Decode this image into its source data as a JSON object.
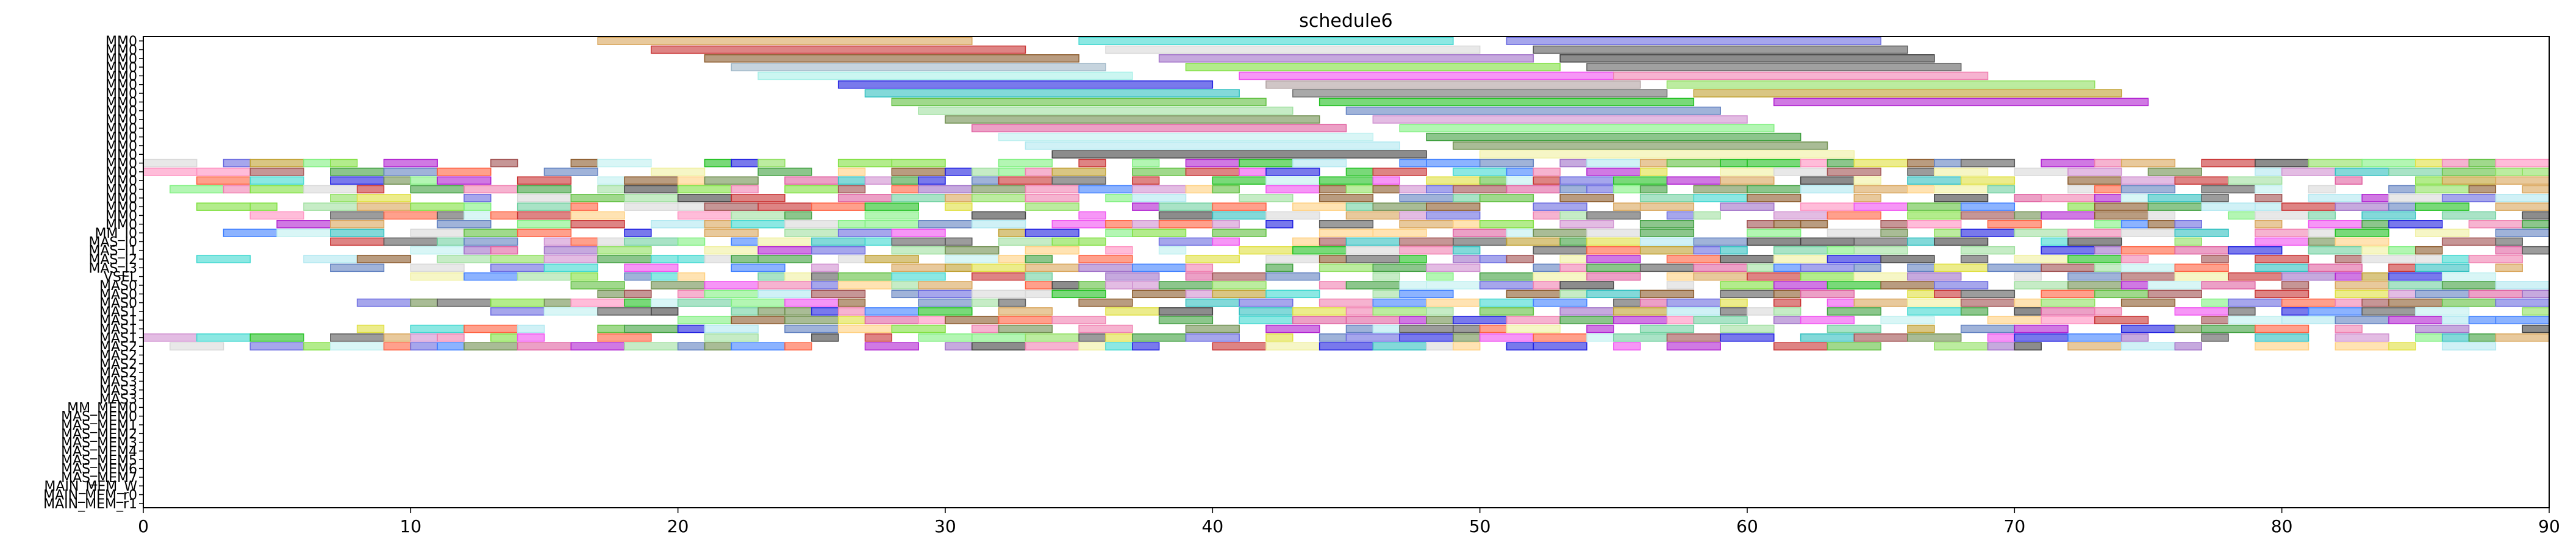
{
  "chart_data": {
    "type": "gantt",
    "title": "schedule6",
    "xlabel": "",
    "ylabel": "",
    "xlim": [
      0,
      90
    ],
    "xticks": [
      0,
      10,
      20,
      30,
      40,
      50,
      60,
      70,
      80,
      90
    ],
    "grid": false,
    "legend": "none",
    "rows": [
      "MM0",
      "MM0",
      "MM0",
      "MM0",
      "MM0",
      "MM0",
      "MM0",
      "MM0",
      "MM0",
      "MM0",
      "MM0",
      "MM0",
      "MM0",
      "MM0",
      "MM0",
      "MM0",
      "MM0",
      "MM0",
      "MM0",
      "MM0",
      "MM0",
      "MM0",
      "MM_I0",
      "MAS_I0",
      "MAS_I1",
      "MAS_I2",
      "MAS_I3",
      "VSEL",
      "MAS0",
      "MAS0",
      "MAS0",
      "MAS1",
      "MAS1",
      "MAS1",
      "MAS1",
      "MAS2",
      "MAS2",
      "MAS2",
      "MAS2",
      "MAS3",
      "MAS3",
      "MAS3",
      "MM_MEM0",
      "MAS_MEM0",
      "MAS_MEM1",
      "MAS_MEM2",
      "MAS_MEM3",
      "MAS_MEM4",
      "MAS_MEM5",
      "MAS_MEM6",
      "MAS_MEM7",
      "MAIN_MEM_W",
      "MAIN_MEM_r0",
      "MAIN_MEM_r1"
    ],
    "tasks": [
      {
        "row": 0,
        "start": 17.0,
        "end": 31.0,
        "color": "#d9a55a"
      },
      {
        "row": 0,
        "start": 35.0,
        "end": 49.0,
        "color": "#40d8d0"
      },
      {
        "row": 0,
        "start": 51.0,
        "end": 65.0,
        "color": "#6a6ae0"
      },
      {
        "row": 1,
        "start": 19.0,
        "end": 33.0,
        "color": "#c83232"
      },
      {
        "row": 1,
        "start": 36.0,
        "end": 50.0,
        "color": "#d8d8d8"
      },
      {
        "row": 1,
        "start": 52.0,
        "end": 66.0,
        "color": "#5a5a5a"
      },
      {
        "row": 2,
        "start": 21.0,
        "end": 35.0,
        "color": "#8b5a2b"
      },
      {
        "row": 2,
        "start": 38.0,
        "end": 52.0,
        "color": "#a070c8"
      },
      {
        "row": 2,
        "start": 53.0,
        "end": 67.0,
        "color": "#404040"
      },
      {
        "row": 3,
        "start": 22.0,
        "end": 36.0,
        "color": "#a0b8c8"
      },
      {
        "row": 3,
        "start": 39.0,
        "end": 53.0,
        "color": "#80e040"
      },
      {
        "row": 3,
        "start": 54.0,
        "end": 68.0,
        "color": "#606060"
      },
      {
        "row": 4,
        "start": 23.0,
        "end": 37.0,
        "color": "#a8f0e8"
      },
      {
        "row": 4,
        "start": 41.0,
        "end": 55.0,
        "color": "#f050f0"
      },
      {
        "row": 4,
        "start": 55.0,
        "end": 69.0,
        "color": "#f080b0"
      },
      {
        "row": 5,
        "start": 26.0,
        "end": 40.0,
        "color": "#2020e0"
      },
      {
        "row": 5,
        "start": 42.0,
        "end": 56.0,
        "color": "#b0a0a0"
      },
      {
        "row": 5,
        "start": 57.0,
        "end": 73.0,
        "color": "#90e060"
      },
      {
        "row": 6,
        "start": 27.0,
        "end": 41.0,
        "color": "#30c0c0"
      },
      {
        "row": 6,
        "start": 43.0,
        "end": 57.0,
        "color": "#707070"
      },
      {
        "row": 6,
        "start": 58.0,
        "end": 74.0,
        "color": "#c0a030"
      },
      {
        "row": 7,
        "start": 28.0,
        "end": 42.0,
        "color": "#60c040"
      },
      {
        "row": 7,
        "start": 44.0,
        "end": 58.0,
        "color": "#20c020"
      },
      {
        "row": 7,
        "start": 61.0,
        "end": 75.0,
        "color": "#b020d0"
      },
      {
        "row": 8,
        "start": 29.0,
        "end": 43.0,
        "color": "#a0e0a0"
      },
      {
        "row": 8,
        "start": 45.0,
        "end": 59.0,
        "color": "#6080c0"
      },
      {
        "row": 9,
        "start": 30.0,
        "end": 44.0,
        "color": "#709050"
      },
      {
        "row": 9,
        "start": 46.0,
        "end": 60.0,
        "color": "#d090d0"
      },
      {
        "row": 10,
        "start": 31.0,
        "end": 45.0,
        "color": "#e060a0"
      },
      {
        "row": 10,
        "start": 47.0,
        "end": 61.0,
        "color": "#80f080"
      },
      {
        "row": 11,
        "start": 32.0,
        "end": 46.0,
        "color": "#c0f0f0"
      },
      {
        "row": 11,
        "start": 48.0,
        "end": 62.0,
        "color": "#40a040"
      },
      {
        "row": 12,
        "start": 33.0,
        "end": 47.0,
        "color": "#b0e8f0"
      },
      {
        "row": 12,
        "start": 49.0,
        "end": 63.0,
        "color": "#709050"
      },
      {
        "row": 13,
        "start": 34.0,
        "end": 48.0,
        "color": "#404040"
      },
      {
        "row": 13,
        "start": 50.0,
        "end": 64.0,
        "color": "#f0f0a0"
      },
      {
        "row": 14,
        "start": 0.0,
        "end": 90.0,
        "color": "mix"
      },
      {
        "row": 15,
        "start": 0.0,
        "end": 90.0,
        "color": "mix"
      },
      {
        "row": 16,
        "start": 2.0,
        "end": 90.0,
        "color": "mix"
      },
      {
        "row": 17,
        "start": 1.0,
        "end": 90.0,
        "color": "mix"
      },
      {
        "row": 18,
        "start": 7.0,
        "end": 90.0,
        "color": "mix"
      },
      {
        "row": 19,
        "start": 1.0,
        "end": 90.0,
        "color": "mix"
      },
      {
        "row": 20,
        "start": 4.0,
        "end": 90.0,
        "color": "mix"
      },
      {
        "row": 21,
        "start": 5.0,
        "end": 90.0,
        "color": "mix"
      },
      {
        "row": 22,
        "start": 3.0,
        "end": 90.0,
        "color": "mix"
      },
      {
        "row": 23,
        "start": 6.0,
        "end": 90.0,
        "color": "mix"
      },
      {
        "row": 24,
        "start": 9.0,
        "end": 90.0,
        "color": "mix"
      },
      {
        "row": 25,
        "start": 2.0,
        "end": 90.0,
        "color": "mix"
      },
      {
        "row": 26,
        "start": 6.0,
        "end": 90.0,
        "color": "mix"
      },
      {
        "row": 27,
        "start": 8.0,
        "end": 90.0,
        "color": "mix"
      },
      {
        "row": 28,
        "start": 16.0,
        "end": 90.0,
        "color": "mix"
      },
      {
        "row": 29,
        "start": 16.0,
        "end": 90.0,
        "color": "mix"
      },
      {
        "row": 30,
        "start": 8.0,
        "end": 90.0,
        "color": "mix"
      },
      {
        "row": 31,
        "start": 12.0,
        "end": 90.0,
        "color": "mix"
      },
      {
        "row": 32,
        "start": 19.0,
        "end": 90.0,
        "color": "mix"
      },
      {
        "row": 33,
        "start": 8.0,
        "end": 90.0,
        "color": "mix"
      },
      {
        "row": 34,
        "start": 0.0,
        "end": 90.0,
        "color": "mix"
      },
      {
        "row": 35,
        "start": 1.0,
        "end": 89.0,
        "color": "mix"
      }
    ]
  }
}
